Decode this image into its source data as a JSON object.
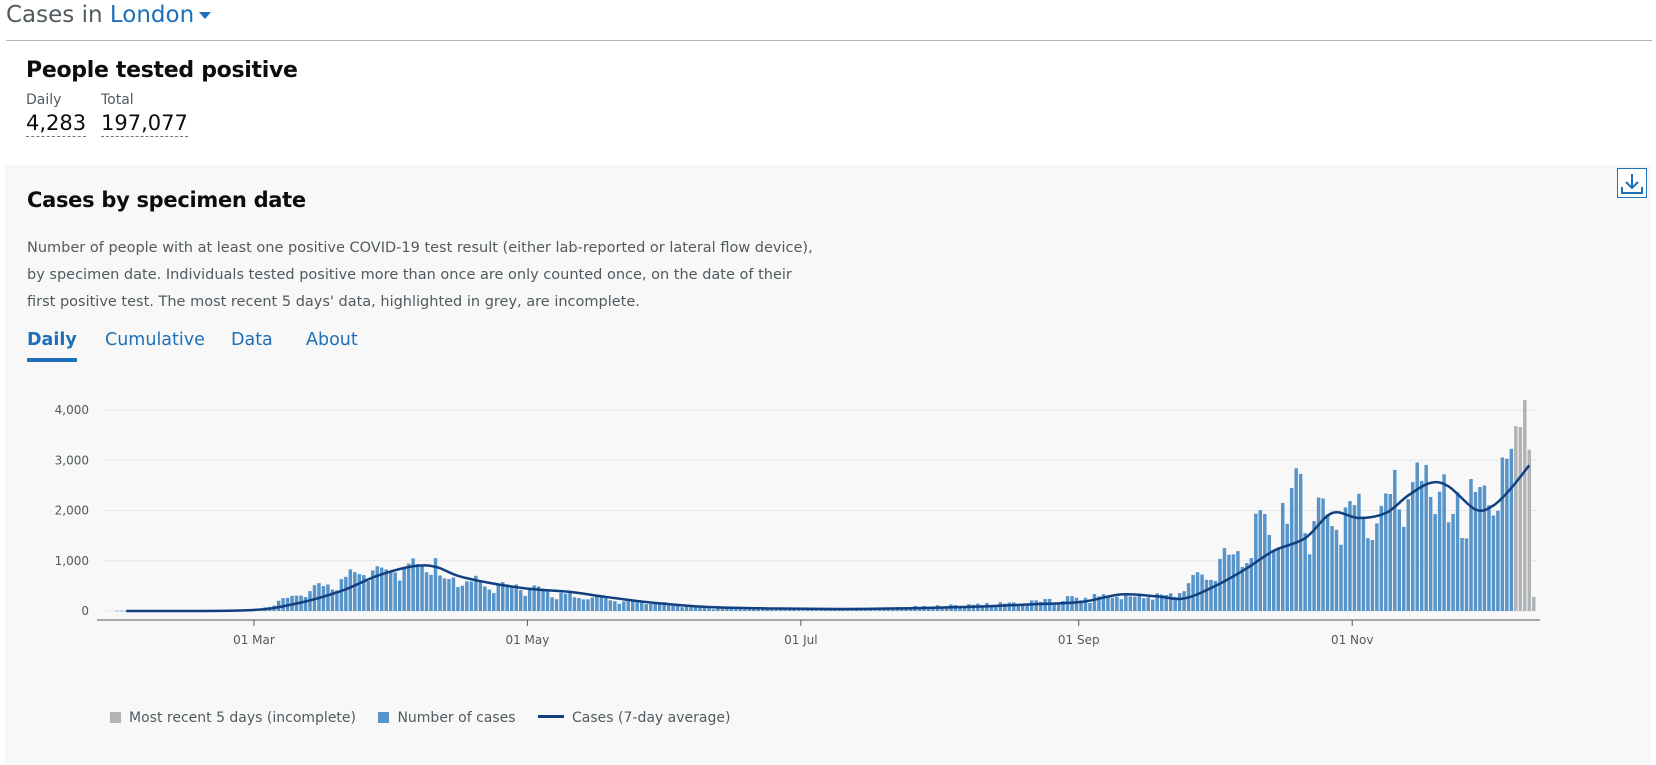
{
  "header": {
    "prefix": "Cases in ",
    "location": "London"
  },
  "headline": {
    "title": "People tested positive",
    "daily_label": "Daily",
    "daily_value": "4,283",
    "total_label": "Total",
    "total_value": "197,077"
  },
  "card": {
    "title": "Cases by specimen date",
    "description": "Number of people with at least one positive COVID-19 test result (either lab-reported or lateral flow device), by specimen date. Individuals tested positive more than once are only counted once, on the date of their first positive test. The most recent 5 days' data, highlighted in grey, are incomplete.",
    "tabs": [
      "Daily",
      "Cumulative",
      "Data",
      "About"
    ],
    "active_tab": 0
  },
  "colors": {
    "bar": "#5694ca",
    "incomplete": "#b1b4b6",
    "line": "#12407f",
    "link": "#1d70b8"
  },
  "chart_data": {
    "type": "bar",
    "yticks": [
      0,
      1000,
      2000,
      3000,
      4000
    ],
    "ytick_labels": [
      "0",
      "1,000",
      "2,000",
      "3,000",
      "4,000"
    ],
    "ylim": [
      0,
      4200
    ],
    "x_start": "2020-01-30",
    "x_end": "2020-12-11",
    "xtick_dates": [
      "2020-03-01",
      "2020-05-01",
      "2020-07-01",
      "2020-09-01",
      "2020-11-01"
    ],
    "xtick_labels": [
      "01 Mar",
      "01 May",
      "01 Jul",
      "01 Sep",
      "01 Nov"
    ],
    "series": [
      {
        "name": "Number of cases",
        "segments": [
          {
            "from": "2020-01-30",
            "to": "2020-02-28",
            "level": 5,
            "noise": 0
          },
          {
            "from": "2020-03-01",
            "to": "2020-03-25",
            "start": 10,
            "end": 800,
            "noise": 0.12
          },
          {
            "from": "2020-03-26",
            "to": "2020-04-10",
            "start": 800,
            "end": 1000,
            "noise": 0.1
          },
          {
            "from": "2020-04-11",
            "to": "2020-05-10",
            "start": 700,
            "end": 320,
            "noise": 0.15
          },
          {
            "from": "2020-05-11",
            "to": "2020-06-10",
            "start": 300,
            "end": 60,
            "noise": 0.15
          },
          {
            "from": "2020-06-11",
            "to": "2020-07-20",
            "start": 55,
            "end": 40,
            "noise": 0.2
          },
          {
            "from": "2020-07-21",
            "to": "2020-08-20",
            "start": 60,
            "end": 170,
            "noise": 0.2
          },
          {
            "from": "2020-08-21",
            "to": "2020-09-12",
            "start": 170,
            "end": 330,
            "noise": 0.25
          },
          {
            "from": "2020-09-13",
            "to": "2020-09-22",
            "start": 260,
            "end": 330,
            "noise": 0.25
          },
          {
            "from": "2020-09-23",
            "to": "2020-10-08",
            "start": 450,
            "end": 1200,
            "noise": 0.2
          },
          {
            "from": "2020-10-09",
            "to": "2020-10-20",
            "start": 1300,
            "end": 2300,
            "noise": 0.25
          },
          {
            "from": "2020-10-21",
            "to": "2020-11-07",
            "start": 1900,
            "end": 2000,
            "noise": 0.22
          },
          {
            "from": "2020-11-08",
            "to": "2020-11-20",
            "start": 2400,
            "end": 2500,
            "noise": 0.25
          },
          {
            "from": "2020-11-21",
            "to": "2020-11-30",
            "start": 2000,
            "end": 2200,
            "noise": 0.22
          },
          {
            "from": "2020-12-01",
            "to": "2020-12-06",
            "start": 2300,
            "end": 2850,
            "noise": 0.12
          }
        ]
      },
      {
        "name": "Most recent 5 days (incomplete)",
        "dates": [
          "2020-12-07",
          "2020-12-08",
          "2020-12-09",
          "2020-12-10",
          "2020-12-11"
        ],
        "values": [
          3680,
          3660,
          4200,
          3210,
          280
        ]
      },
      {
        "name": "Cases (7-day average)",
        "points": [
          [
            "2020-02-01",
            0
          ],
          [
            "2020-02-28",
            15
          ],
          [
            "2020-03-10",
            150
          ],
          [
            "2020-03-20",
            400
          ],
          [
            "2020-03-28",
            700
          ],
          [
            "2020-04-05",
            890
          ],
          [
            "2020-04-10",
            880
          ],
          [
            "2020-04-15",
            700
          ],
          [
            "2020-04-22",
            560
          ],
          [
            "2020-05-01",
            440
          ],
          [
            "2020-05-10",
            380
          ],
          [
            "2020-05-18",
            280
          ],
          [
            "2020-05-28",
            170
          ],
          [
            "2020-06-10",
            80
          ],
          [
            "2020-06-25",
            50
          ],
          [
            "2020-07-10",
            40
          ],
          [
            "2020-07-25",
            55
          ],
          [
            "2020-08-10",
            90
          ],
          [
            "2020-08-20",
            130
          ],
          [
            "2020-09-01",
            180
          ],
          [
            "2020-09-10",
            330
          ],
          [
            "2020-09-18",
            290
          ],
          [
            "2020-09-24",
            250
          ],
          [
            "2020-10-01",
            500
          ],
          [
            "2020-10-08",
            850
          ],
          [
            "2020-10-14",
            1200
          ],
          [
            "2020-10-21",
            1450
          ],
          [
            "2020-10-27",
            1950
          ],
          [
            "2020-11-02",
            1850
          ],
          [
            "2020-11-08",
            1950
          ],
          [
            "2020-11-13",
            2300
          ],
          [
            "2020-11-18",
            2550
          ],
          [
            "2020-11-22",
            2480
          ],
          [
            "2020-11-28",
            2020
          ],
          [
            "2020-12-02",
            2100
          ],
          [
            "2020-12-06",
            2450
          ],
          [
            "2020-12-10",
            2900
          ]
        ]
      }
    ],
    "legend": [
      "Most recent 5 days (incomplete)",
      "Number of cases",
      "Cases (7-day average)"
    ],
    "legend_placement": "bottom-left",
    "grid": true
  }
}
